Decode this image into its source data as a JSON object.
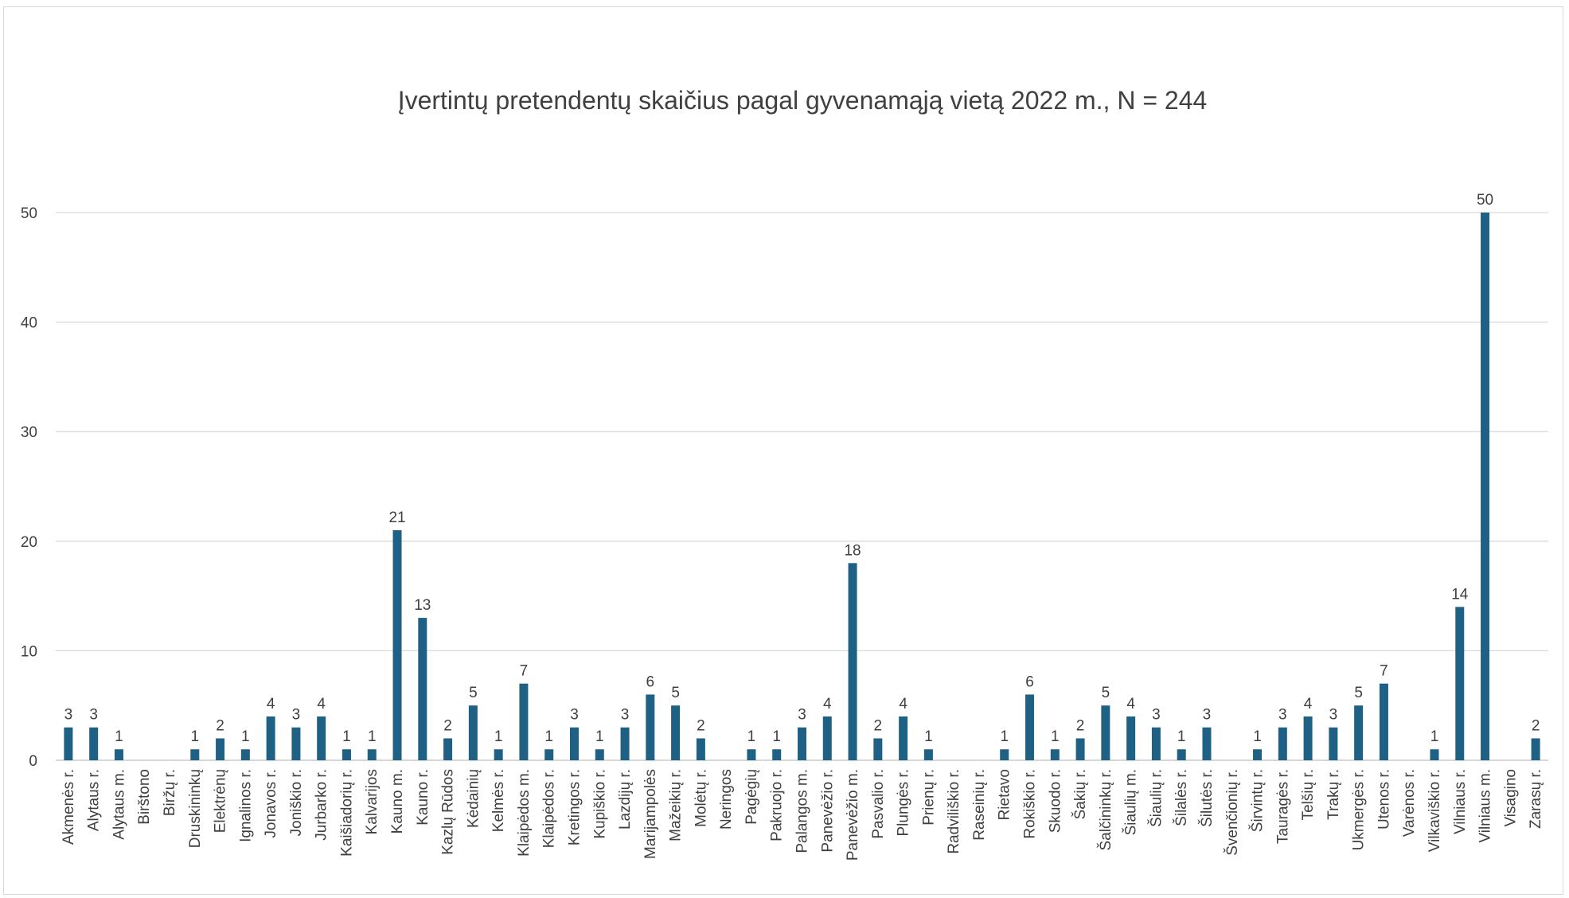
{
  "chart_data": {
    "type": "bar",
    "title": "Įvertintų pretendentų skaičius pagal gyvenamąją vietą 2022 m., N = 244",
    "xlabel": "",
    "ylabel": "",
    "ylim": [
      0,
      50
    ],
    "yticks": [
      0,
      10,
      20,
      30,
      40,
      50
    ],
    "grid": true,
    "bar_color": "#1f6185",
    "categories": [
      "Akmenės r.",
      "Alytaus r.",
      "Alytaus m.",
      "Birštono",
      "Biržų r.",
      "Druskininkų",
      "Elektrėnų",
      "Ignalinos r.",
      "Jonavos r.",
      "Joniškio r.",
      "Jurbarko r.",
      "Kaišiadorių r.",
      "Kalvarijos",
      "Kauno m.",
      "Kauno r.",
      "Kazlų Rūdos",
      "Kėdainių",
      "Kelmės r.",
      "Klaipėdos m.",
      "Klaipėdos r.",
      "Kretingos r.",
      "Kupiškio r.",
      "Lazdijų r.",
      "Marijampolės",
      "Mažeikių r.",
      "Molėtų r.",
      "Neringos",
      "Pagėgių",
      "Pakruojo r.",
      "Palangos m.",
      "Panevėžio r.",
      "Panevėžio m.",
      "Pasvalio r.",
      "Plungės r.",
      "Prienų r.",
      "Radviliškio r.",
      "Raseinių r.",
      "Rietavo",
      "Rokiškio r.",
      "Skuodo r.",
      "Šakių r.",
      "Šalčininkų r.",
      "Šiaulių m.",
      "Šiaulių r.",
      "Šilalės r.",
      "Šilutės r.",
      "Švenčionių r.",
      "Širvintų r.",
      "Tauragės r.",
      "Telšių r.",
      "Trakų r.",
      "Ukmergės r.",
      "Utenos r.",
      "Varėnos r.",
      "Vilkaviškio r.",
      "Vilniaus r.",
      "Vilniaus m.",
      "Visagino",
      "Zarasų r."
    ],
    "values": [
      3,
      3,
      1,
      0,
      0,
      1,
      2,
      1,
      4,
      3,
      4,
      1,
      1,
      21,
      13,
      2,
      5,
      1,
      7,
      1,
      3,
      1,
      3,
      6,
      5,
      2,
      0,
      1,
      1,
      3,
      4,
      18,
      2,
      4,
      1,
      0,
      0,
      1,
      6,
      1,
      2,
      5,
      4,
      3,
      1,
      3,
      0,
      1,
      3,
      4,
      3,
      5,
      7,
      0,
      1,
      14,
      50,
      0,
      2
    ]
  }
}
